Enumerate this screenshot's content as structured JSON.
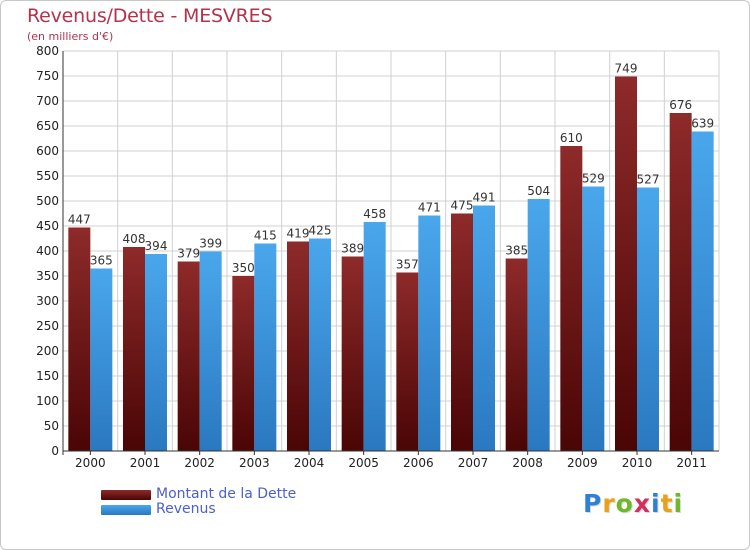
{
  "header": {
    "title": "Revenus/Dette - MESVRES",
    "subtitle": "(en milliers d'€)"
  },
  "colors": {
    "title": "#b5324b",
    "debt": "#7a1a1a",
    "revenue": "#3f9be0",
    "legend_text": "#4b5fd0",
    "grid": "#d0d0d0",
    "axis_text": "#222222"
  },
  "chart_data": {
    "type": "bar",
    "title": "Revenus/Dette - MESVRES",
    "subtitle": "(en milliers d'€)",
    "categories": [
      "2000",
      "2001",
      "2002",
      "2003",
      "2004",
      "2005",
      "2006",
      "2007",
      "2008",
      "2009",
      "2010",
      "2011"
    ],
    "series": [
      {
        "name": "Montant de la Dette",
        "values": [
          447,
          408,
          379,
          350,
          419,
          389,
          357,
          475,
          385,
          610,
          749,
          676
        ]
      },
      {
        "name": "Revenus",
        "values": [
          365,
          394,
          399,
          415,
          425,
          458,
          471,
          491,
          504,
          529,
          527,
          639
        ]
      }
    ],
    "ylim": [
      0,
      800
    ],
    "ytick_step": 50,
    "yticks": [
      "0",
      "50",
      "100",
      "150",
      "200",
      "250",
      "300",
      "350",
      "400",
      "450",
      "500",
      "550",
      "600",
      "650",
      "700",
      "750",
      "800"
    ],
    "grid": true,
    "data_labels": true,
    "legend_position": "bottom-left"
  },
  "legend": {
    "items": [
      {
        "label": "Montant de la Dette",
        "color": "#7a1a1a"
      },
      {
        "label": "Revenus",
        "color": "#3f9be0"
      }
    ]
  },
  "logo": {
    "letters": [
      "P",
      "r",
      "o",
      "x",
      "i",
      "t",
      "i"
    ],
    "colors": [
      "#2f7fd6",
      "#e8a21a",
      "#6fb82e",
      "#d62f5c",
      "#2f7fd6",
      "#e8a21a",
      "#6fb82e"
    ]
  }
}
